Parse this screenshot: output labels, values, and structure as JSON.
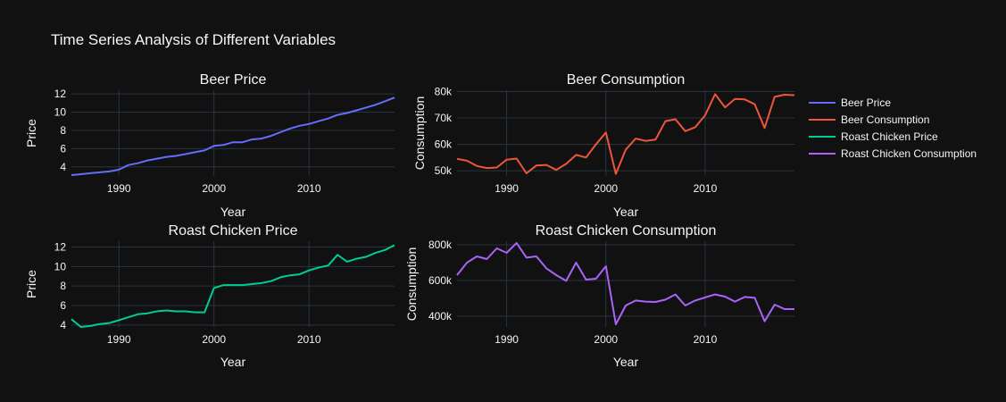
{
  "chart_data": {
    "title": "Time Series Analysis of Different Variables",
    "background": "#111111",
    "grid_color": "#283442",
    "legend": {
      "position": "right",
      "entries": [
        "Beer Price",
        "Beer Consumption",
        "Roast Chicken Price",
        "Roast Chicken Consumption"
      ]
    },
    "subplots": [
      {
        "type": "line",
        "title": "Beer Price",
        "xlabel": "Year",
        "ylabel": "Price",
        "xlim": [
          1985,
          2019
        ],
        "ylim": [
          3,
          12.4
        ],
        "xticks": [
          1990,
          2000,
          2010
        ],
        "yticks": [
          4,
          6,
          8,
          10,
          12
        ],
        "ytick_labels": [
          "4",
          "6",
          "8",
          "10",
          "12"
        ],
        "series": [
          {
            "name": "Beer Price",
            "color": "#636efa",
            "x": [
              1985,
              1986,
              1987,
              1988,
              1989,
              1990,
              1991,
              1992,
              1993,
              1994,
              1995,
              1996,
              1997,
              1998,
              1999,
              2000,
              2001,
              2002,
              2003,
              2004,
              2005,
              2006,
              2007,
              2008,
              2009,
              2010,
              2011,
              2012,
              2013,
              2014,
              2015,
              2016,
              2017,
              2018,
              2019
            ],
            "y": [
              3.1,
              3.2,
              3.3,
              3.4,
              3.5,
              3.7,
              4.2,
              4.4,
              4.7,
              4.9,
              5.1,
              5.2,
              5.4,
              5.6,
              5.8,
              6.3,
              6.4,
              6.7,
              6.7,
              7.0,
              7.1,
              7.4,
              7.8,
              8.2,
              8.5,
              8.7,
              9.0,
              9.3,
              9.7,
              9.9,
              10.2,
              10.5,
              10.8,
              11.2,
              11.6
            ]
          }
        ]
      },
      {
        "type": "line",
        "title": "Beer Consumption",
        "xlabel": "Year",
        "ylabel": "Consumption",
        "xlim": [
          1985,
          2019
        ],
        "ylim": [
          48000,
          80500
        ],
        "xticks": [
          1990,
          2000,
          2010
        ],
        "yticks": [
          50000,
          60000,
          70000,
          80000
        ],
        "ytick_labels": [
          "50k",
          "60k",
          "70k",
          "80k"
        ],
        "series": [
          {
            "name": "Beer Consumption",
            "color": "#ef553b",
            "x": [
              1985,
              1986,
              1987,
              1988,
              1989,
              1990,
              1991,
              1992,
              1993,
              1994,
              1995,
              1996,
              1997,
              1998,
              1999,
              2000,
              2001,
              2002,
              2003,
              2004,
              2005,
              2006,
              2007,
              2008,
              2009,
              2010,
              2011,
              2012,
              2013,
              2014,
              2015,
              2016,
              2017,
              2018,
              2019
            ],
            "y": [
              54500,
              53800,
              51800,
              51000,
              51200,
              54200,
              54600,
              49000,
              52000,
              52200,
              50300,
              52600,
              56000,
              55000,
              60000,
              64500,
              48800,
              58000,
              62200,
              61300,
              61800,
              68800,
              69500,
              65000,
              66500,
              71000,
              79000,
              74000,
              77200,
              77000,
              75200,
              66200,
              78000,
              78800,
              78600
            ]
          }
        ]
      },
      {
        "type": "line",
        "title": "Roast Chicken Price",
        "xlabel": "Year",
        "ylabel": "Price",
        "xlim": [
          1985,
          2019
        ],
        "ylim": [
          3.8,
          12.6
        ],
        "xticks": [
          1990,
          2000,
          2010
        ],
        "yticks": [
          4,
          6,
          8,
          10,
          12
        ],
        "ytick_labels": [
          "4",
          "6",
          "8",
          "10",
          "12"
        ],
        "series": [
          {
            "name": "Roast Chicken Price",
            "color": "#00cc96",
            "x": [
              1985,
              1986,
              1987,
              1988,
              1989,
              1990,
              1991,
              1992,
              1993,
              1994,
              1995,
              1996,
              1997,
              1998,
              1999,
              2000,
              2001,
              2002,
              2003,
              2004,
              2005,
              2006,
              2007,
              2008,
              2009,
              2010,
              2011,
              2012,
              2013,
              2014,
              2015,
              2016,
              2017,
              2018,
              2019
            ],
            "y": [
              4.6,
              3.8,
              3.9,
              4.1,
              4.2,
              4.5,
              4.8,
              5.1,
              5.2,
              5.4,
              5.5,
              5.4,
              5.4,
              5.3,
              5.3,
              7.8,
              8.1,
              8.1,
              8.1,
              8.2,
              8.3,
              8.5,
              8.9,
              9.1,
              9.2,
              9.6,
              9.9,
              10.1,
              11.2,
              10.5,
              10.8,
              11.0,
              11.4,
              11.7,
              12.2
            ]
          }
        ]
      },
      {
        "type": "line",
        "title": "Roast Chicken Consumption",
        "xlabel": "Year",
        "ylabel": "Consumption",
        "xlim": [
          1985,
          2019
        ],
        "ylim": [
          340000,
          820000
        ],
        "xticks": [
          1990,
          2000,
          2010
        ],
        "yticks": [
          400000,
          600000,
          800000
        ],
        "ytick_labels": [
          "400k",
          "600k",
          "800k"
        ],
        "series": [
          {
            "name": "Roast Chicken Consumption",
            "color": "#ab63fa",
            "x": [
              1985,
              1986,
              1987,
              1988,
              1989,
              1990,
              1991,
              1992,
              1993,
              1994,
              1995,
              1996,
              1997,
              1998,
              1999,
              2000,
              2001,
              2002,
              2003,
              2004,
              2005,
              2006,
              2007,
              2008,
              2009,
              2010,
              2011,
              2012,
              2013,
              2014,
              2015,
              2016,
              2017,
              2018,
              2019
            ],
            "y": [
              630000,
              700000,
              735000,
              720000,
              780000,
              755000,
              810000,
              728000,
              735000,
              668000,
              630000,
              598000,
              700000,
              605000,
              610000,
              680000,
              355000,
              460000,
              488000,
              482000,
              480000,
              493000,
              522000,
              460000,
              488000,
              505000,
              522000,
              510000,
              482000,
              508000,
              503000,
              372000,
              465000,
              440000,
              440000
            ]
          }
        ]
      }
    ]
  }
}
